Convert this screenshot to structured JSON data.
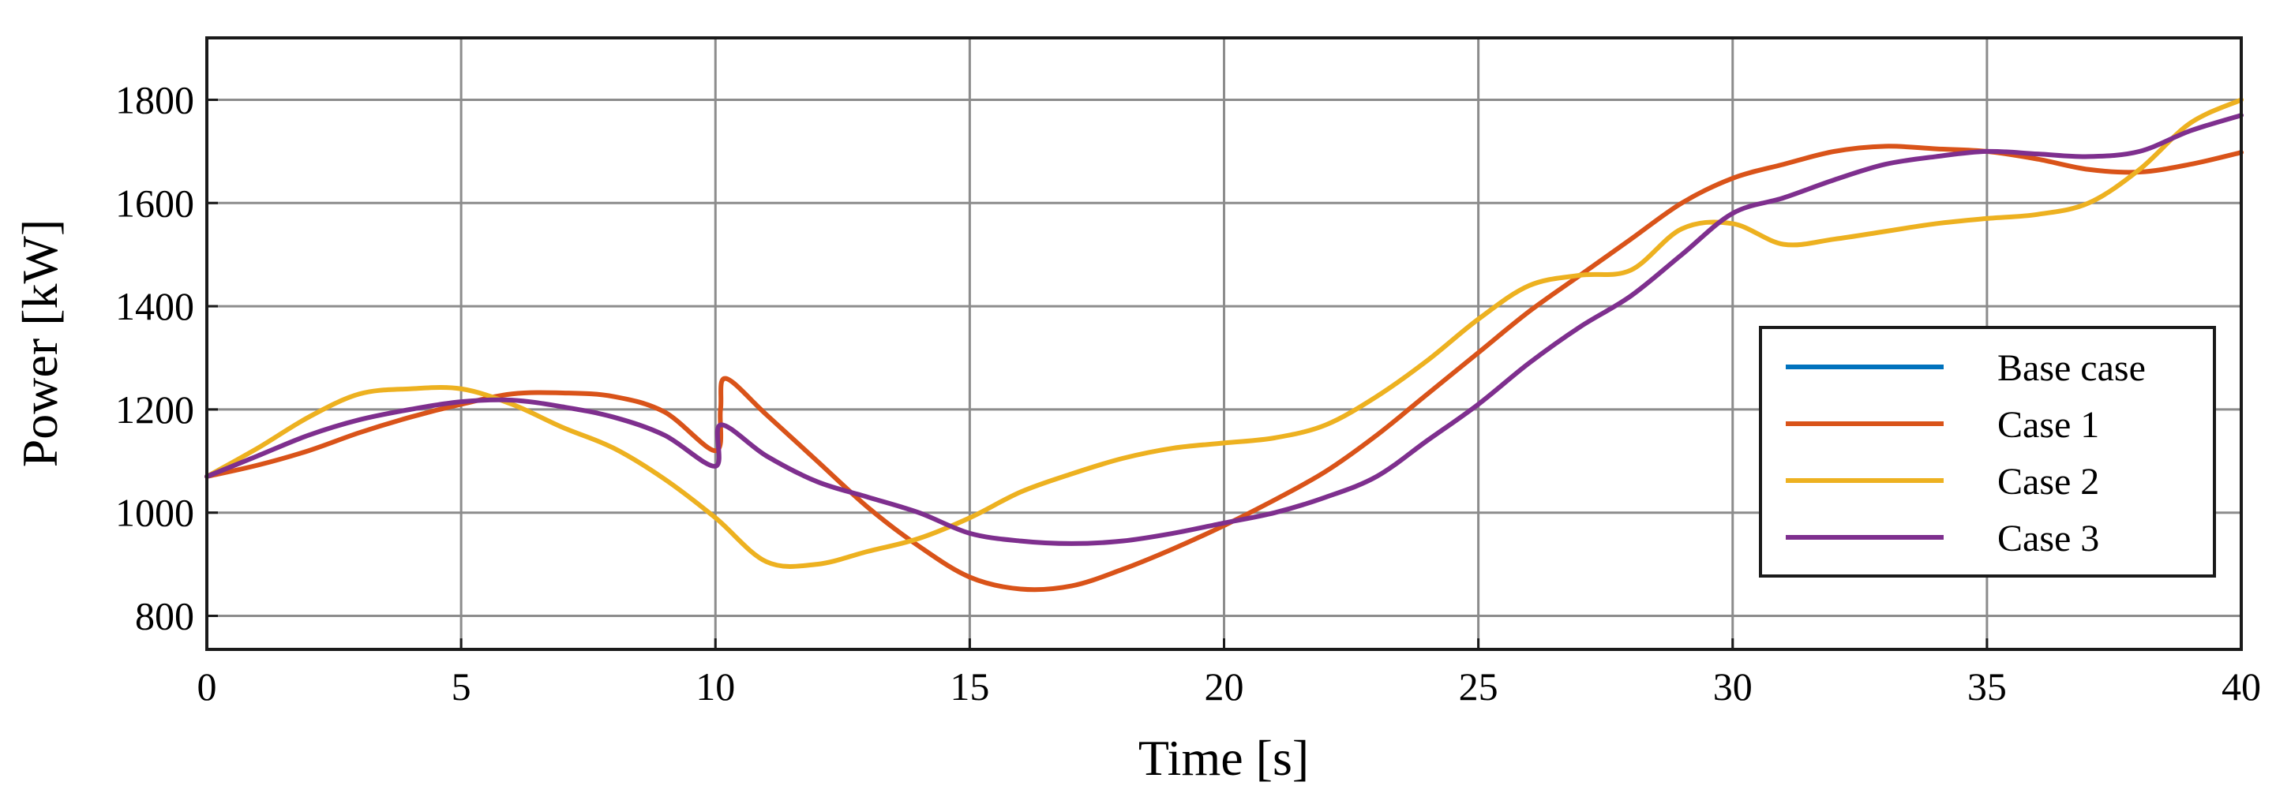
{
  "chart_data": {
    "type": "line",
    "title": "",
    "xlabel": "Time [s]",
    "ylabel": "Power [kW]",
    "xlim": [
      0,
      40
    ],
    "ylim": [
      735,
      1920
    ],
    "xticks": [
      0,
      5,
      10,
      15,
      20,
      25,
      30,
      35,
      40
    ],
    "yticks": [
      800,
      1000,
      1200,
      1400,
      1600,
      1800
    ],
    "grid": true,
    "legend_position": "lower-right",
    "series": [
      {
        "name": "Base case",
        "color": "#0072BD",
        "x": [],
        "y": []
      },
      {
        "name": "Case 1",
        "color": "#D95319",
        "x": [
          0,
          1,
          2,
          3,
          4,
          5,
          6,
          7,
          8,
          9,
          10,
          10.1,
          10.2,
          11,
          12,
          13,
          14,
          15,
          16,
          17,
          18,
          19,
          20,
          21,
          22,
          23,
          24,
          25,
          26,
          27,
          28,
          29,
          30,
          31,
          32,
          33,
          34,
          35,
          36,
          37,
          38,
          39,
          40
        ],
        "y": [
          1070,
          1092,
          1120,
          1155,
          1185,
          1210,
          1230,
          1232,
          1225,
          1195,
          1120,
          1200,
          1260,
          1190,
          1100,
          1010,
          935,
          875,
          852,
          858,
          890,
          930,
          975,
          1025,
          1080,
          1150,
          1230,
          1310,
          1390,
          1460,
          1530,
          1600,
          1648,
          1675,
          1700,
          1710,
          1705,
          1700,
          1685,
          1665,
          1660,
          1675,
          1698
        ]
      },
      {
        "name": "Case 2",
        "color": "#EDB120",
        "x": [
          0,
          1,
          2,
          3,
          4,
          5,
          6,
          7,
          8,
          9,
          10,
          11,
          12,
          13,
          14,
          15,
          16,
          17,
          18,
          19,
          20,
          21,
          22,
          23,
          24,
          25,
          26,
          27,
          28,
          29,
          30,
          31,
          32,
          33,
          34,
          35,
          36,
          37,
          38,
          39,
          40
        ],
        "y": [
          1070,
          1125,
          1185,
          1230,
          1240,
          1240,
          1210,
          1165,
          1125,
          1065,
          990,
          905,
          900,
          925,
          950,
          990,
          1040,
          1075,
          1105,
          1125,
          1135,
          1145,
          1170,
          1225,
          1295,
          1375,
          1440,
          1460,
          1470,
          1550,
          1560,
          1520,
          1530,
          1545,
          1560,
          1570,
          1578,
          1600,
          1665,
          1755,
          1800
        ]
      },
      {
        "name": "Case 3",
        "color": "#7E2F8E",
        "x": [
          0,
          1,
          2,
          3,
          4,
          5,
          6,
          7,
          8,
          9,
          10,
          10.1,
          11,
          12,
          13,
          14,
          15,
          16,
          17,
          18,
          19,
          20,
          21,
          22,
          23,
          24,
          25,
          26,
          27,
          28,
          29,
          30,
          31,
          32,
          33,
          34,
          35,
          36,
          37,
          38,
          39,
          40
        ],
        "y": [
          1070,
          1110,
          1150,
          1180,
          1200,
          1215,
          1218,
          1205,
          1185,
          1150,
          1090,
          1170,
          1110,
          1060,
          1030,
          1000,
          960,
          945,
          940,
          945,
          960,
          980,
          1000,
          1030,
          1070,
          1140,
          1210,
          1290,
          1360,
          1420,
          1500,
          1580,
          1610,
          1645,
          1675,
          1690,
          1700,
          1695,
          1690,
          1700,
          1740,
          1770
        ]
      }
    ]
  }
}
